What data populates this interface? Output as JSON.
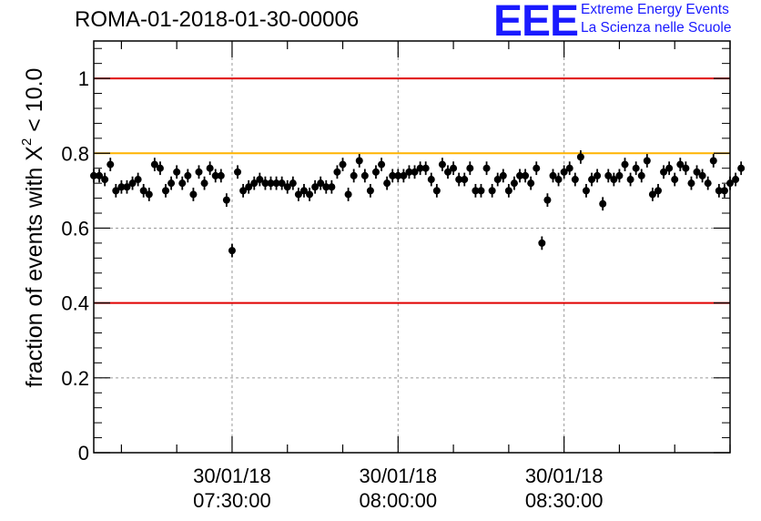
{
  "header": {
    "run_title": "ROMA-01-2018-01-30-00006",
    "logo_text": "EEE",
    "logo_line1": "Extreme Energy Events",
    "logo_line2": "La Scienza nelle Scuole"
  },
  "chart_data": {
    "type": "scatter",
    "title": "ROMA-01-2018-01-30-00006",
    "ylabel_prefix": "fraction of events with X",
    "ylabel_superscript": "2",
    "ylabel_suffix": "< 10.0",
    "ylim": [
      0,
      1.1
    ],
    "yticks": [
      0,
      0.2,
      0.4,
      0.6,
      0.8,
      1
    ],
    "ytick_labels": [
      "0",
      "0.2",
      "0.4",
      "0.6",
      "0.8",
      "1"
    ],
    "x_axis": {
      "type": "time",
      "start": "2018-01-30T07:05:00",
      "end": "2018-01-30T09:00:00"
    },
    "xticks": [
      {
        "time": "2018-01-30T07:30:00",
        "date_label": "30/01/18",
        "time_label": "07:30:00"
      },
      {
        "time": "2018-01-30T08:00:00",
        "date_label": "30/01/18",
        "time_label": "08:00:00"
      },
      {
        "time": "2018-01-30T08:30:00",
        "date_label": "30/01/18",
        "time_label": "08:30:00"
      }
    ],
    "grid": true,
    "reference_lines": [
      {
        "y": 1.0,
        "color": "#e00000"
      },
      {
        "y": 0.8,
        "color": "#ffb400"
      },
      {
        "y": 0.4,
        "color": "#e00000"
      }
    ],
    "series": [
      {
        "marker_color": "#000000",
        "time_start": "2018-01-30T07:05:00",
        "time_step": "00:01:00",
        "error": 0.018,
        "values": [
          0.74,
          0.74,
          0.73,
          0.77,
          0.7,
          0.71,
          0.71,
          0.72,
          0.73,
          0.7,
          0.69,
          0.77,
          0.76,
          0.7,
          0.72,
          0.75,
          0.72,
          0.74,
          0.69,
          0.75,
          0.72,
          0.76,
          0.74,
          0.74,
          0.675,
          0.54,
          0.75,
          0.7,
          0.71,
          0.72,
          0.73,
          0.72,
          0.72,
          0.72,
          0.72,
          0.71,
          0.72,
          0.69,
          0.7,
          0.69,
          0.71,
          0.72,
          0.71,
          0.71,
          0.75,
          0.77,
          0.69,
          0.74,
          0.78,
          0.74,
          0.7,
          0.75,
          0.77,
          0.72,
          0.74,
          0.74,
          0.74,
          0.75,
          0.75,
          0.76,
          0.76,
          0.73,
          0.7,
          0.77,
          0.75,
          0.76,
          0.73,
          0.73,
          0.76,
          0.7,
          0.7,
          0.76,
          0.7,
          0.73,
          0.74,
          0.7,
          0.72,
          0.74,
          0.74,
          0.72,
          0.76,
          0.56,
          0.675,
          0.74,
          0.73,
          0.75,
          0.76,
          0.73,
          0.79,
          0.7,
          0.73,
          0.74,
          0.665,
          0.74,
          0.73,
          0.74,
          0.77,
          0.73,
          0.76,
          0.74,
          0.78,
          0.69,
          0.7,
          0.75,
          0.76,
          0.73,
          0.77,
          0.76,
          0.72,
          0.75,
          0.74,
          0.72,
          0.78,
          0.7,
          0.7,
          0.72,
          0.73,
          0.76
        ]
      }
    ]
  }
}
